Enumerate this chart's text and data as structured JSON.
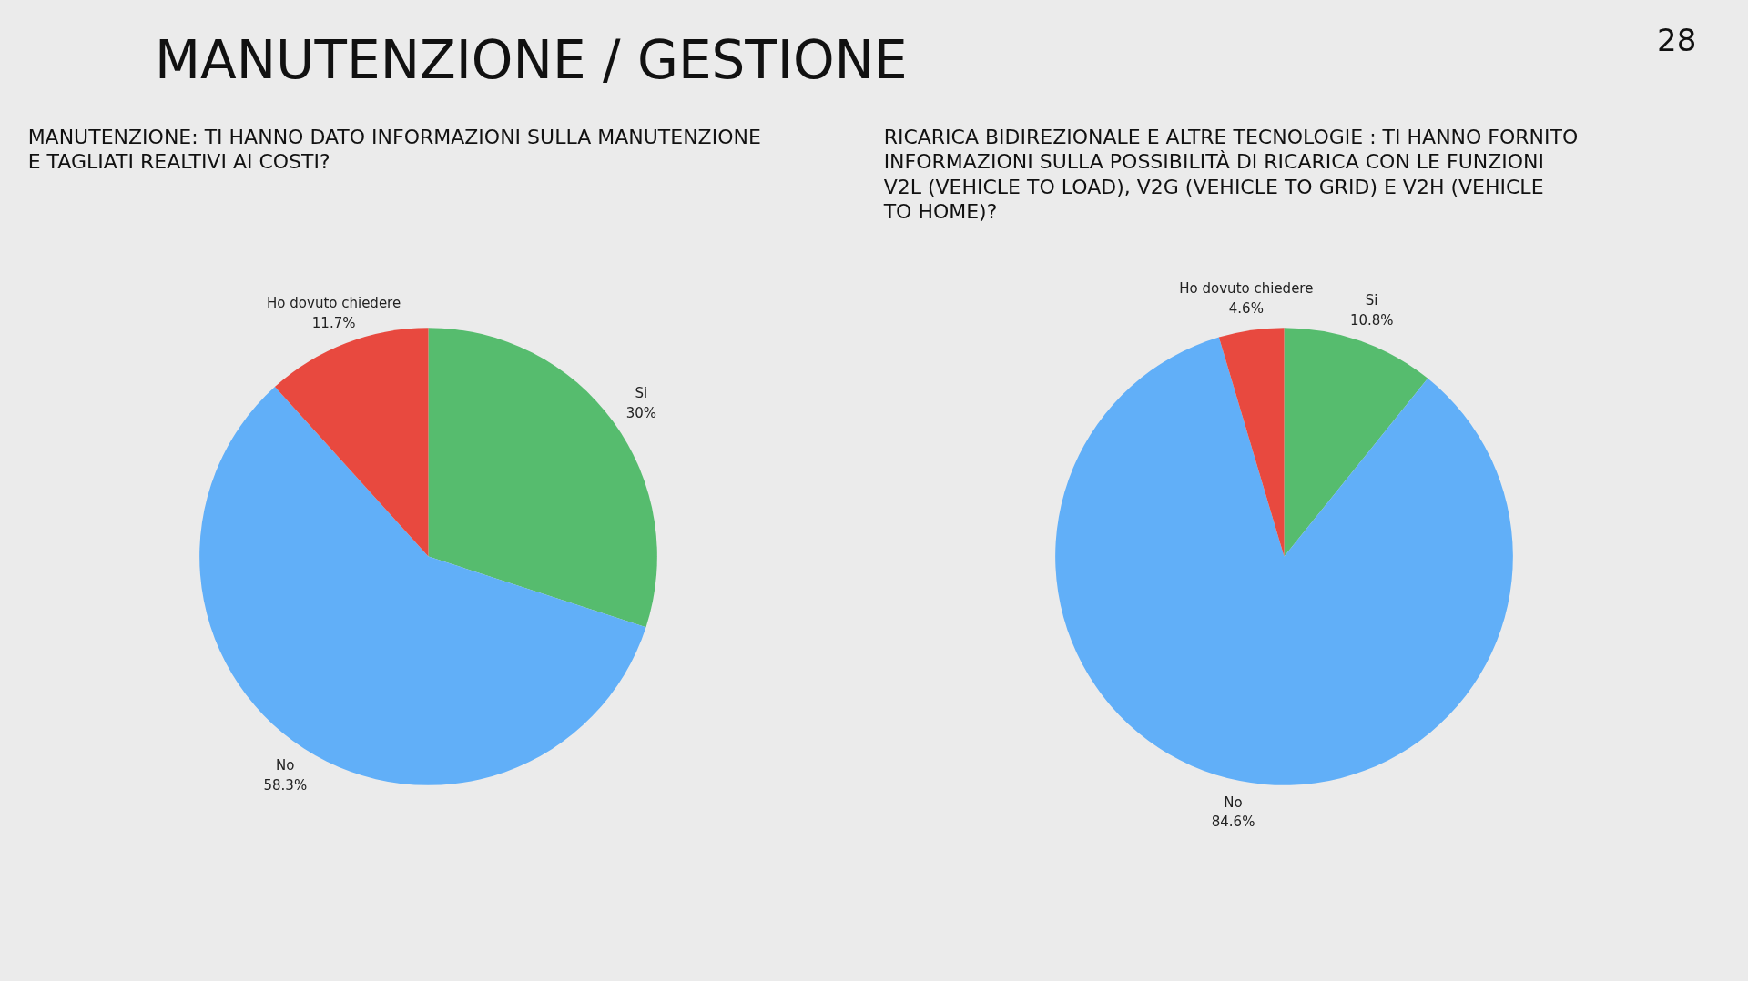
{
  "chart_data": [
    {
      "type": "pie",
      "title": "MANUTENZIONE: TI HANNO DATO INFORMAZIONI SULLA MANUTENZIONE E TAGLIATI REALTIVI AI COSTI?",
      "annotations": [
        "MANUTENZIONE / GESTIONE",
        "28"
      ],
      "categories": [
        "Si",
        "No",
        "Ho dovuto chiedere"
      ],
      "values": [
        30,
        58.3,
        11.7
      ],
      "value_labels": [
        "30%",
        "58.3%",
        "11.7%"
      ],
      "colors": [
        "#56bc6e",
        "#61aff8",
        "#e8493f"
      ]
    },
    {
      "type": "pie",
      "title": "RICARICA BIDIREZIONALE E ALTRE TECNOLOGIE : TI HANNO FORNITO INFORMAZIONI SULLA POSSIBILITÀ DI RICARICA CON LE FUNZIONI V2L (VEHICLE TO LOAD), V2G (VEHICLE TO GRID) E V2H (VEHICLE TO HOME)?",
      "categories": [
        "Si",
        "No",
        "Ho dovuto chiedere"
      ],
      "values": [
        10.8,
        84.6,
        4.6
      ],
      "value_labels": [
        "10.8%",
        "84.6%",
        "4.6%"
      ],
      "colors": [
        "#56bc6e",
        "#61aff8",
        "#e8493f"
      ]
    }
  ]
}
